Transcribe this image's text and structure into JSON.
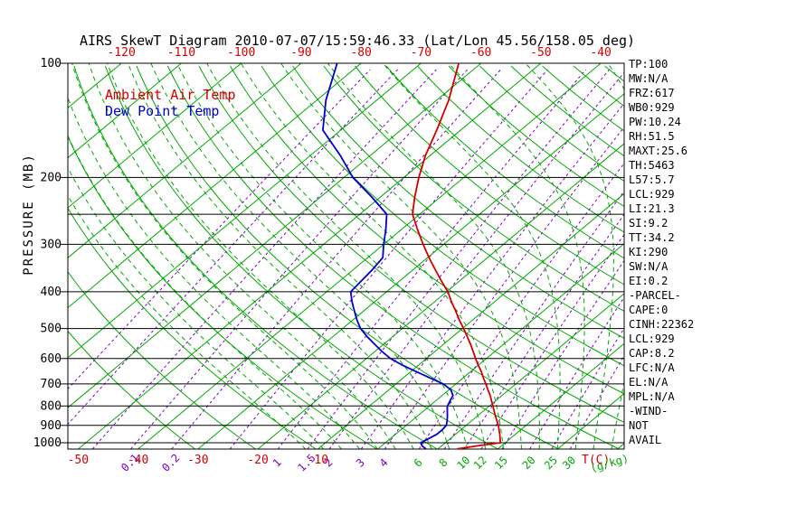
{
  "title": "AIRS SkewT Diagram 2010-07-07/15:59:46.33 (Lat/Lon 45.56/158.05 deg)",
  "legend": {
    "air_temp_label": "Ambient Air Temp",
    "dew_point_label": "Dew Point Temp"
  },
  "axes": {
    "pressure_axis_label": "PRESSURE (MB)",
    "pressure_tick_labels": [
      100,
      200,
      300,
      400,
      500,
      600,
      700,
      800,
      900,
      1000
    ],
    "isobar_levels": [
      100,
      200,
      250,
      300,
      400,
      500,
      600,
      700,
      800,
      900,
      1000
    ],
    "top_temp_labels": [
      -120,
      -110,
      -100,
      -90,
      -80,
      -70,
      -60,
      -50,
      -40
    ],
    "bottom_temp_labels": [
      -50,
      -40,
      -30,
      -20,
      -10
    ],
    "temp_unit": "T(C)",
    "mixing_ratio_unit": "(g/kg)",
    "mixing_ratio_labels_violet": [
      0.1,
      0.2,
      1,
      1.5,
      2,
      3,
      4
    ],
    "mixing_ratio_labels_green": [
      6,
      8,
      10,
      12,
      15,
      20,
      25,
      30
    ]
  },
  "colors": {
    "grid_green": "#00a800",
    "temp_red": "#d40000",
    "dewpoint_blue": "#0000cd",
    "mixing_violet": "#8000c8",
    "axis_black": "#000000"
  },
  "stats_panel": {
    "lines": [
      "TP:100",
      "MW:N/A",
      "FRZ:617",
      "WB0:929",
      "PW:10.24",
      "RH:51.5",
      "MAXT:25.6",
      "TH:5463",
      "L57:5.7",
      "LCL:929",
      "LI:21.3",
      "SI:9.2",
      "TT:34.2",
      "KI:290",
      "SW:N/A",
      "EI:0.2",
      "-PARCEL-",
      "CAPE:0",
      "CINH:22362",
      "LCL:929",
      "CAP:8.2",
      "LFC:N/A",
      "EL:N/A",
      "MPL:N/A",
      "-WIND-",
      "NOT",
      "AVAIL"
    ]
  },
  "chart_data": {
    "type": "line",
    "diagram": "skew-T log-p",
    "x_axis": {
      "label": "Temperature (C)",
      "skewed": true,
      "top_label_range": [
        -120,
        -40
      ],
      "bottom_label_range": [
        -50,
        -10
      ]
    },
    "y_axis": {
      "label": "PRESSURE (MB)",
      "scale": "log",
      "range": [
        100,
        1040
      ],
      "inverted": true
    },
    "grid": {
      "isotherms_C": {
        "from": -130,
        "to": 40,
        "step": 10
      },
      "dry_adiabats_K": {
        "from": 240,
        "to": 460,
        "step": 10
      },
      "moist_adiabats_C": {
        "from": -12,
        "to": 39,
        "step": 3
      },
      "mixing_ratio_g_kg": [
        0.01,
        0.02,
        0.05,
        0.1,
        0.2,
        0.5,
        1,
        1.5,
        2,
        3,
        4,
        6,
        8,
        10,
        12,
        15,
        20,
        25,
        30
      ]
    },
    "series": [
      {
        "name": "Ambient Air Temp",
        "color": "#d40000",
        "points_p_T": [
          [
            100,
            -63.7
          ],
          [
            125,
            -58
          ],
          [
            150,
            -54
          ],
          [
            175,
            -50.8
          ],
          [
            200,
            -47.5
          ],
          [
            225,
            -44.3
          ],
          [
            250,
            -41.2
          ],
          [
            275,
            -37.2
          ],
          [
            300,
            -33.4
          ],
          [
            325,
            -29.8
          ],
          [
            350,
            -26.3
          ],
          [
            375,
            -23
          ],
          [
            400,
            -19.8
          ],
          [
            425,
            -17.2
          ],
          [
            450,
            -14.6
          ],
          [
            475,
            -12.2
          ],
          [
            500,
            -9.8
          ],
          [
            525,
            -7.6
          ],
          [
            550,
            -5.5
          ],
          [
            575,
            -3.6
          ],
          [
            600,
            -1.8
          ],
          [
            625,
            0
          ],
          [
            650,
            1.8
          ],
          [
            675,
            3.4
          ],
          [
            700,
            5
          ],
          [
            725,
            6.5
          ],
          [
            750,
            8
          ],
          [
            775,
            9.3
          ],
          [
            800,
            10.6
          ],
          [
            825,
            11.8
          ],
          [
            850,
            13
          ],
          [
            875,
            14.2
          ],
          [
            900,
            15.4
          ],
          [
            925,
            16.4
          ],
          [
            950,
            17.4
          ],
          [
            975,
            18.3
          ],
          [
            1000,
            19.2
          ],
          [
            1020,
            15.8
          ],
          [
            1038,
            13.2
          ]
        ]
      },
      {
        "name": "Dew Point Temp",
        "color": "#0000cd",
        "points_p_T": [
          [
            100,
            -84
          ],
          [
            125,
            -78.5
          ],
          [
            150,
            -73
          ],
          [
            175,
            -65
          ],
          [
            200,
            -58.5
          ],
          [
            225,
            -51.5
          ],
          [
            250,
            -45.5
          ],
          [
            275,
            -42.5
          ],
          [
            300,
            -40
          ],
          [
            325,
            -37.5
          ],
          [
            350,
            -36.8
          ],
          [
            375,
            -36.4
          ],
          [
            400,
            -36
          ],
          [
            425,
            -33.8
          ],
          [
            450,
            -31.5
          ],
          [
            475,
            -29.3
          ],
          [
            500,
            -27
          ],
          [
            525,
            -24.3
          ],
          [
            550,
            -21.5
          ],
          [
            575,
            -18.8
          ],
          [
            600,
            -16
          ],
          [
            625,
            -12.6
          ],
          [
            650,
            -9
          ],
          [
            675,
            -5.5
          ],
          [
            700,
            -2.1
          ],
          [
            725,
            0.3
          ],
          [
            750,
            1.8
          ],
          [
            775,
            2.4
          ],
          [
            800,
            3
          ],
          [
            825,
            4
          ],
          [
            850,
            5
          ],
          [
            875,
            5.9
          ],
          [
            900,
            6.7
          ],
          [
            925,
            6.9
          ],
          [
            950,
            6.9
          ],
          [
            975,
            6.4
          ],
          [
            1000,
            5.9
          ],
          [
            1020,
            6.8
          ],
          [
            1038,
            8
          ]
        ]
      }
    ]
  }
}
